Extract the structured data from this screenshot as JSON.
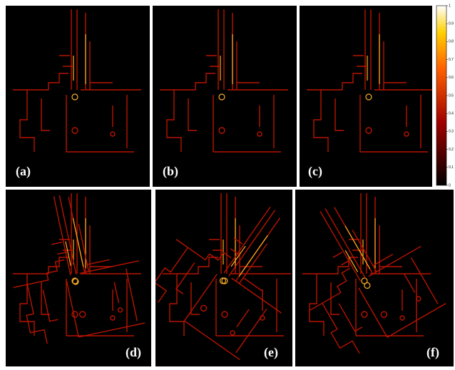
{
  "panels": [
    {
      "label": "(a)"
    },
    {
      "label": "(b)"
    },
    {
      "label": "(c)"
    },
    {
      "label": "(d)"
    },
    {
      "label": "(e)"
    },
    {
      "label": "(f)"
    }
  ],
  "colorbar": {
    "ticks": [
      0,
      0.1,
      0.2,
      0.3,
      0.4,
      0.5,
      0.6,
      0.7,
      0.8,
      0.9,
      1
    ]
  }
}
